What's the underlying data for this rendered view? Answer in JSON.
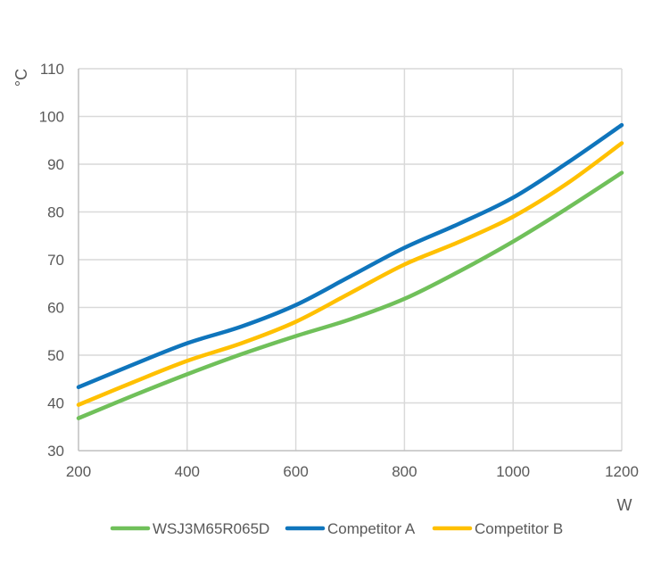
{
  "chart_data": {
    "type": "line",
    "title": "",
    "xlabel": "W",
    "ylabel": "°C",
    "xlim": [
      200,
      1200
    ],
    "ylim": [
      30,
      110
    ],
    "x_ticks": [
      200,
      400,
      600,
      800,
      1000,
      1200
    ],
    "y_ticks": [
      30,
      40,
      50,
      60,
      70,
      80,
      90,
      100,
      110
    ],
    "grid": true,
    "legend_position": "bottom",
    "x": [
      200,
      300,
      400,
      500,
      600,
      700,
      800,
      900,
      1000,
      1100,
      1200
    ],
    "series": [
      {
        "name": "WSJ3M65R065D",
        "color": "#70c05a",
        "values": [
          36.8,
          41.5,
          46.0,
          50.2,
          54.0,
          57.5,
          61.8,
          67.5,
          73.8,
          80.8,
          88.2
        ]
      },
      {
        "name": "Competitor A",
        "color": "#0f75bc",
        "values": [
          43.3,
          48.0,
          52.5,
          56.0,
          60.5,
          66.5,
          72.5,
          77.5,
          83.0,
          90.3,
          98.2
        ]
      },
      {
        "name": "Competitor B",
        "color": "#ffc000",
        "values": [
          39.6,
          44.3,
          48.8,
          52.5,
          57.0,
          63.0,
          69.0,
          73.7,
          79.0,
          86.0,
          94.4
        ]
      }
    ]
  }
}
